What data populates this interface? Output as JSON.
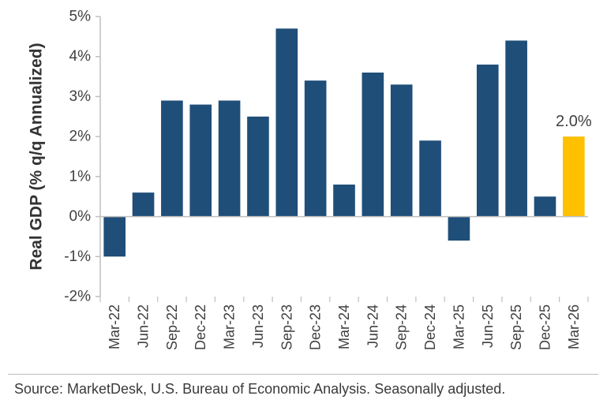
{
  "chart_data": {
    "type": "bar",
    "categories": [
      "Mar-22",
      "Jun-22",
      "Sep-22",
      "Dec-22",
      "Mar-23",
      "Jun-23",
      "Sep-23",
      "Dec-23",
      "Mar-24",
      "Jun-24",
      "Sep-24",
      "Dec-24",
      "Mar-25",
      "Jun-25",
      "Sep-25",
      "Dec-25",
      "Mar-26"
    ],
    "values": [
      -1.0,
      0.6,
      2.9,
      2.8,
      2.9,
      2.5,
      4.7,
      3.4,
      0.8,
      3.6,
      3.3,
      1.9,
      -0.6,
      3.8,
      4.4,
      0.5,
      2.0
    ],
    "ylabel": "Real GDP (% q/q Annualized)",
    "ylim": [
      -2,
      5
    ],
    "yticks": [
      5,
      4,
      3,
      2,
      1,
      0,
      -1,
      -2
    ],
    "ytick_labels": [
      "5%",
      "4%",
      "3%",
      "2%",
      "1%",
      "0%",
      "-1%",
      "-2%"
    ],
    "grid": false,
    "colors": {
      "bar": "#1f4e79",
      "highlight": "#ffc000"
    },
    "highlight_index": 16,
    "data_labels": [
      {
        "index": 16,
        "text": "2.0%"
      }
    ]
  },
  "source": "Source: MarketDesk, U.S. Bureau of Economic Analysis. Seasonally adjusted."
}
